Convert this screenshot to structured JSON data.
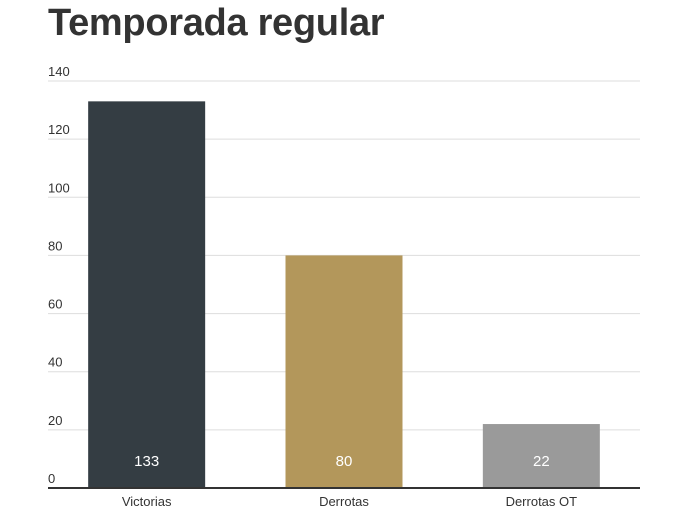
{
  "chart_data": {
    "type": "bar",
    "title": "Temporada regular",
    "categories": [
      "Victorias",
      "Derrotas",
      "Derrotas OT"
    ],
    "values": [
      133,
      80,
      22
    ],
    "colors": [
      "#343d43",
      "#b3975b",
      "#9a9a9a"
    ],
    "data_labels": [
      "133",
      "80",
      "22"
    ],
    "ylim": [
      0,
      140
    ],
    "yticks": [
      "0",
      "20",
      "40",
      "60",
      "80",
      "100",
      "120",
      "140"
    ],
    "grid": true,
    "legend": "none",
    "xlabel": "",
    "ylabel": ""
  }
}
